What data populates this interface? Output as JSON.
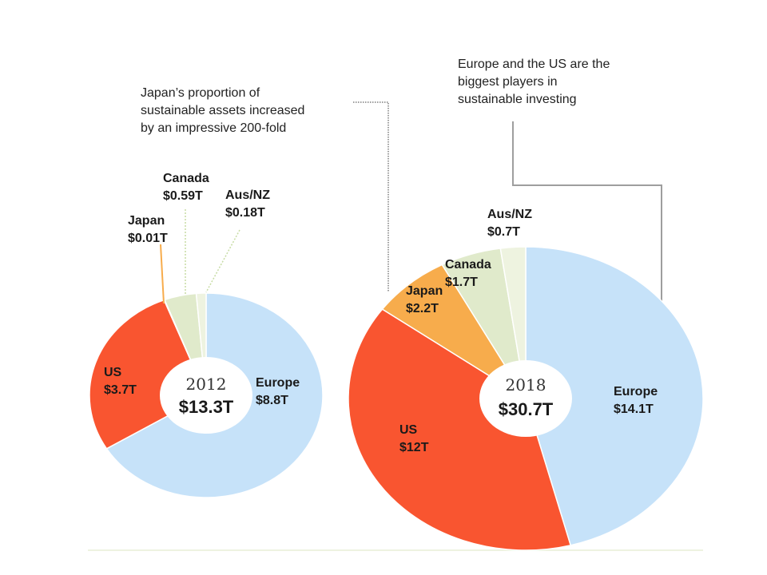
{
  "chart_data": [
    {
      "type": "pie",
      "year_label": "2012",
      "total_label": "$13.3T",
      "slices": [
        {
          "name": "Europe",
          "value_label": "$8.8T",
          "value": 8.8,
          "color": "#c6e2f9"
        },
        {
          "name": "US",
          "value_label": "$3.7T",
          "value": 3.7,
          "color": "#f95530"
        },
        {
          "name": "Japan",
          "value_label": "$0.01T",
          "value": 0.01,
          "color": "#f7ac4c"
        },
        {
          "name": "Canada",
          "value_label": "$0.59T",
          "value": 0.59,
          "color": "#e0eacb"
        },
        {
          "name": "Aus/NZ",
          "value_label": "$0.18T",
          "value": 0.18,
          "color": "#eef3e0"
        }
      ]
    },
    {
      "type": "pie",
      "year_label": "2018",
      "total_label": "$30.7T",
      "slices": [
        {
          "name": "Europe",
          "value_label": "$14.1T",
          "value": 14.1,
          "color": "#c6e2f9"
        },
        {
          "name": "US",
          "value_label": "$12T",
          "value": 12,
          "color": "#f95530"
        },
        {
          "name": "Japan",
          "value_label": "$2.2T",
          "value": 2.2,
          "color": "#f7ac4c"
        },
        {
          "name": "Canada",
          "value_label": "$1.7T",
          "value": 1.7,
          "color": "#e0eacb"
        },
        {
          "name": "Aus/NZ",
          "value_label": "$0.7T",
          "value": 0.7,
          "color": "#eef3e0"
        }
      ]
    }
  ],
  "annotations": {
    "japan": "Japan’s proportion of\nsustainable assets increased\nby an impressive 200-fold",
    "europe_us": "Europe and the US are the\nbiggest players in\nsustainable investing"
  }
}
